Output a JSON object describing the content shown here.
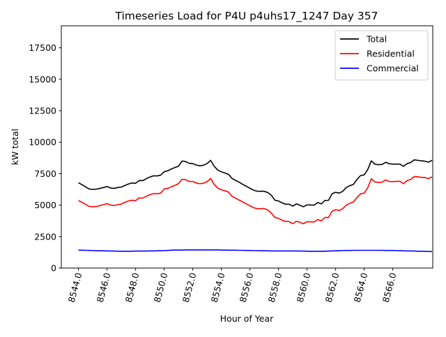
{
  "chart_data": {
    "type": "line",
    "title": "Timeseries Load for P4U p4uhs17_1247  Day 357",
    "xlabel": "Hour of Year",
    "ylabel": "kW total",
    "xlim": [
      8542.8,
      8568.8
    ],
    "ylim": [
      0,
      19250
    ],
    "x_ticks": [
      8544,
      8546,
      8548,
      8550,
      8552,
      8554,
      8556,
      8558,
      8560,
      8562,
      8564,
      8566
    ],
    "x_tick_labels": [
      "8544.0",
      "8546.0",
      "8548.0",
      "8550.0",
      "8552.0",
      "8554.0",
      "8556.0",
      "8558.0",
      "8560.0",
      "8562.0",
      "8564.0",
      "8566.0"
    ],
    "y_ticks": [
      0,
      2500,
      5000,
      7500,
      10000,
      12500,
      15000,
      17500
    ],
    "y_tick_labels": [
      "0",
      "2500",
      "5000",
      "7500",
      "10000",
      "12500",
      "15000",
      "17500"
    ],
    "grid": false,
    "legend_position": "top-right",
    "x_start": 8544,
    "x_step": 0.25,
    "series": [
      {
        "name": "Total",
        "color": "#000000",
        "values": [
          6780,
          6620,
          6450,
          6280,
          6250,
          6270,
          6330,
          6400,
          6480,
          6360,
          6330,
          6400,
          6430,
          6560,
          6680,
          6760,
          6740,
          6950,
          6950,
          7100,
          7230,
          7330,
          7320,
          7380,
          7650,
          7730,
          7870,
          7990,
          8090,
          8500,
          8460,
          8320,
          8300,
          8180,
          8130,
          8170,
          8300,
          8560,
          8090,
          7780,
          7650,
          7560,
          7450,
          7120,
          6970,
          6820,
          6650,
          6500,
          6340,
          6190,
          6110,
          6100,
          6100,
          6000,
          5790,
          5390,
          5330,
          5180,
          5070,
          5070,
          4920,
          5100,
          4990,
          4870,
          5020,
          5010,
          5000,
          5210,
          5100,
          5370,
          5380,
          5900,
          6020,
          5950,
          6100,
          6400,
          6550,
          6650,
          7050,
          7350,
          7400,
          7830,
          8520,
          8250,
          8210,
          8230,
          8400,
          8290,
          8260,
          8260,
          8260,
          8080,
          8300,
          8380,
          8600,
          8560,
          8520,
          8490,
          8410,
          8560
        ]
      },
      {
        "name": "Residential",
        "color": "#ff0000",
        "values": [
          5360,
          5220,
          5060,
          4900,
          4870,
          4890,
          4960,
          5040,
          5120,
          5000,
          4970,
          5040,
          5090,
          5220,
          5330,
          5390,
          5360,
          5570,
          5560,
          5700,
          5830,
          5910,
          5900,
          5950,
          6280,
          6330,
          6460,
          6570,
          6700,
          7050,
          7020,
          6880,
          6880,
          6760,
          6700,
          6740,
          6860,
          7120,
          6650,
          6350,
          6220,
          6140,
          6040,
          5700,
          5550,
          5400,
          5250,
          5100,
          4950,
          4800,
          4720,
          4720,
          4730,
          4610,
          4360,
          4020,
          3950,
          3800,
          3710,
          3690,
          3520,
          3720,
          3640,
          3520,
          3680,
          3670,
          3660,
          3860,
          3750,
          4020,
          4010,
          4510,
          4640,
          4570,
          4720,
          5000,
          5150,
          5250,
          5620,
          5900,
          5950,
          6380,
          7100,
          6840,
          6800,
          6830,
          7000,
          6880,
          6870,
          6890,
          6890,
          6710,
          6950,
          7040,
          7270,
          7250,
          7210,
          7190,
          7110,
          7250
        ]
      },
      {
        "name": "Commercial",
        "color": "#0000ff",
        "values": [
          1420,
          1420,
          1410,
          1400,
          1390,
          1380,
          1370,
          1370,
          1360,
          1360,
          1350,
          1340,
          1340,
          1340,
          1340,
          1340,
          1350,
          1350,
          1350,
          1350,
          1360,
          1360,
          1370,
          1380,
          1390,
          1400,
          1420,
          1430,
          1430,
          1430,
          1440,
          1440,
          1440,
          1440,
          1440,
          1440,
          1440,
          1440,
          1440,
          1440,
          1430,
          1430,
          1420,
          1420,
          1420,
          1410,
          1410,
          1400,
          1400,
          1390,
          1390,
          1380,
          1370,
          1370,
          1360,
          1360,
          1360,
          1360,
          1360,
          1360,
          1360,
          1360,
          1350,
          1350,
          1340,
          1330,
          1330,
          1330,
          1340,
          1340,
          1350,
          1360,
          1370,
          1380,
          1390,
          1400,
          1400,
          1410,
          1410,
          1410,
          1410,
          1410,
          1410,
          1410,
          1410,
          1410,
          1400,
          1400,
          1400,
          1390,
          1380,
          1370,
          1360,
          1360,
          1350,
          1340,
          1340,
          1330,
          1320,
          1310
        ]
      }
    ]
  }
}
